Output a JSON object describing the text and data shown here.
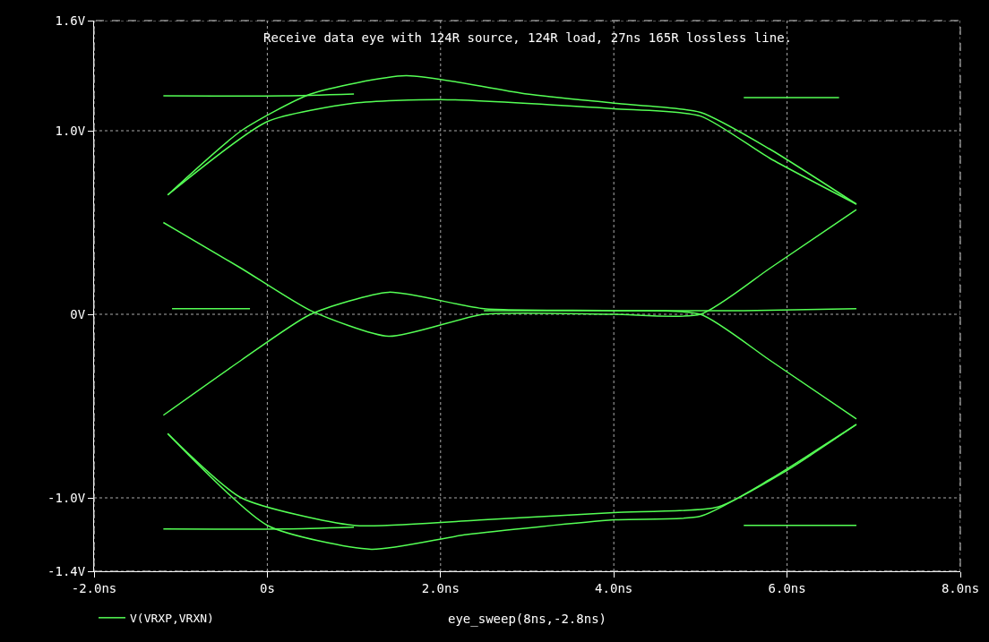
{
  "chart_data": {
    "type": "line",
    "title": "Receive data eye with 124R source, 124R load, 27ns 165R lossless line.",
    "xlabel": "eye_sweep(8ns,-2.8ns)",
    "xlim": [
      -2,
      8
    ],
    "ylim": [
      -1.4,
      1.6
    ],
    "xticks": [
      {
        "value": -2,
        "label": "-2.0ns"
      },
      {
        "value": 0,
        "label": "0s"
      },
      {
        "value": 2,
        "label": "2.0ns"
      },
      {
        "value": 4,
        "label": "4.0ns"
      },
      {
        "value": 6,
        "label": "6.0ns"
      },
      {
        "value": 8,
        "label": "8.0ns"
      }
    ],
    "yticks": [
      {
        "value": -1.4,
        "label": "-1.4V"
      },
      {
        "value": -1,
        "label": "-1.0V"
      },
      {
        "value": 0,
        "label": "0V"
      },
      {
        "value": 1,
        "label": "1.0V"
      },
      {
        "value": 1.6,
        "label": "1.6V"
      }
    ],
    "grid": true,
    "legend": "bottom left",
    "marker": "none",
    "line_style": "solid",
    "series": [
      {
        "name": "V(VRXP,VRXN)",
        "color": "#55ff55",
        "x": [
          -1.15,
          -0.3,
          0.5,
          1.6,
          3,
          4,
          5,
          5.8,
          6.8,
          null,
          -1.15,
          0,
          1,
          2,
          4,
          5,
          5.8,
          6.8,
          null,
          -1.2,
          0.2,
          1,
          null,
          5.5,
          6.6,
          null,
          -1.2,
          -0.3,
          0.5,
          1.4,
          2.5,
          4,
          5,
          5.8,
          6.8,
          null,
          -1.2,
          -0.3,
          0.5,
          1.4,
          2.5,
          4,
          5,
          5.8,
          6.8,
          null,
          -1.1,
          -0.2,
          null,
          2.5,
          5.5,
          6.8,
          null,
          -1.15,
          0,
          1.2,
          2.3,
          4,
          5,
          5.8,
          6.8,
          null,
          -1.15,
          -0.3,
          1,
          2.5,
          4,
          5.2,
          6,
          6.8,
          null,
          -1.2,
          0.2,
          1,
          null,
          5.5,
          6.8
        ],
        "values": [
          0.65,
          1.0,
          1.2,
          1.3,
          1.2,
          1.15,
          1.1,
          0.9,
          0.6,
          null,
          0.65,
          1.05,
          1.15,
          1.17,
          1.12,
          1.08,
          0.85,
          0.6,
          null,
          1.19,
          1.19,
          1.2,
          null,
          1.18,
          1.18,
          null,
          0.5,
          0.25,
          0.02,
          -0.12,
          0.0,
          0.0,
          0.0,
          0.25,
          0.57,
          null,
          -0.55,
          -0.25,
          0.0,
          0.12,
          0.03,
          0.02,
          0.0,
          -0.25,
          -0.57,
          null,
          0.03,
          0.03,
          null,
          0.02,
          0.02,
          0.03,
          null,
          -0.65,
          -1.15,
          -1.28,
          -1.2,
          -1.12,
          -1.1,
          -0.9,
          -0.6,
          null,
          -0.65,
          -1.0,
          -1.15,
          -1.12,
          -1.08,
          -1.05,
          -0.85,
          -0.6,
          null,
          -1.17,
          -1.17,
          -1.16,
          null,
          -1.15,
          -1.15
        ]
      }
    ]
  }
}
